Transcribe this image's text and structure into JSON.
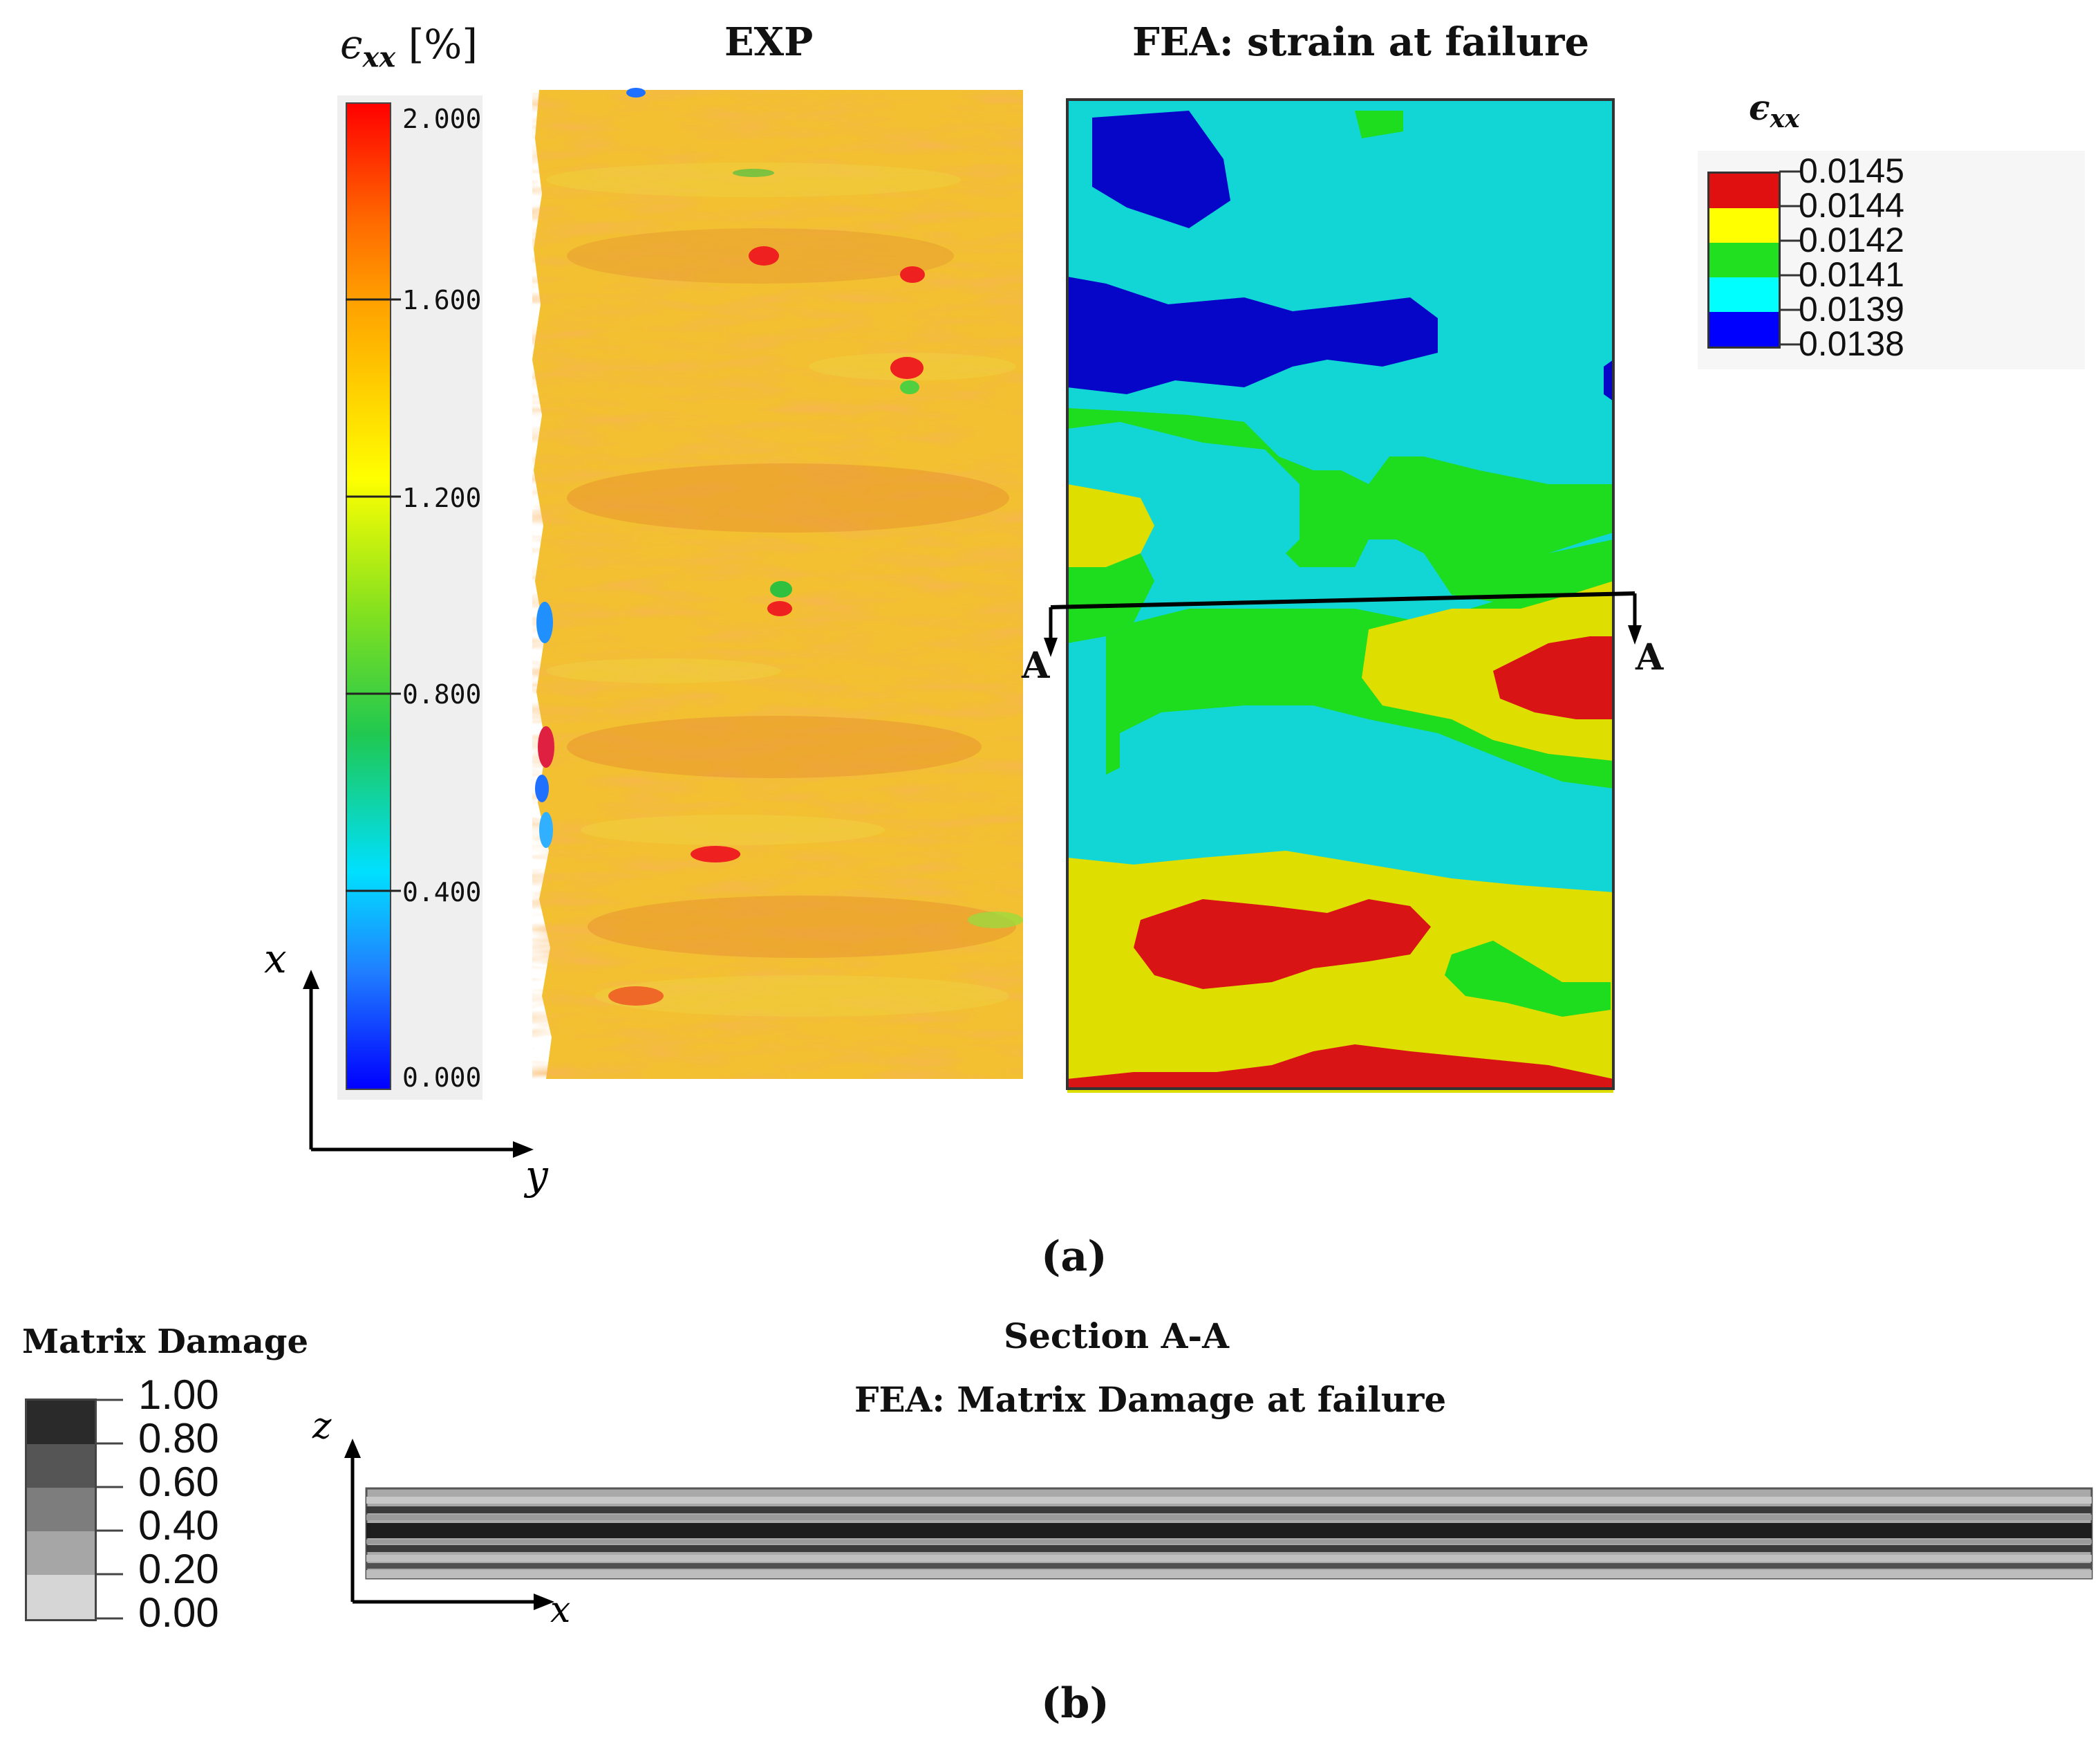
{
  "panel_a": {
    "colorbar": {
      "symbol": "ϵ",
      "subscript": "xx",
      "unit": "[%]",
      "ticks": [
        "2.000",
        "1.600",
        "1.200",
        "0.800",
        "0.400",
        "0.000"
      ],
      "colors": [
        "#ff0000",
        "#ffa000",
        "#ffff00",
        "#40d040",
        "#00e0ff",
        "#2090ff",
        "#0000ff"
      ]
    },
    "axes": {
      "vertical": "x",
      "horizontal": "y"
    },
    "exp_title": "EXP",
    "fea_title": "FEA: strain at failure",
    "section_markers": [
      "A",
      "A"
    ],
    "legend": {
      "symbol": "ϵ",
      "subscript": "xx",
      "entries": [
        "0.0145",
        "0.0144",
        "0.0142",
        "0.0141",
        "0.0139",
        "0.0138"
      ],
      "colors": [
        "#e01010",
        "#ffff00",
        "#20e020",
        "#00ffff",
        "#0000ff"
      ]
    },
    "fea_colors": {
      "red": "#d91414",
      "yellow": "#dede00",
      "green": "#1edc1e",
      "cyan": "#12d6d6",
      "blue": "#0606c8"
    },
    "caption": "(a)"
  },
  "panel_b": {
    "legend_title": "Matrix Damage",
    "legend_entries": [
      "1.00",
      "0.80",
      "0.60",
      "0.40",
      "0.20",
      "0.00"
    ],
    "legend_colors": [
      "#2a2a2a",
      "#555555",
      "#7d7d7d",
      "#a6a6a6",
      "#d6d6d6"
    ],
    "section_title": "Section A-A",
    "fea_title": "FEA: Matrix Damage at failure",
    "axes": {
      "vertical": "z",
      "horizontal": "x"
    },
    "caption": "(b)"
  }
}
